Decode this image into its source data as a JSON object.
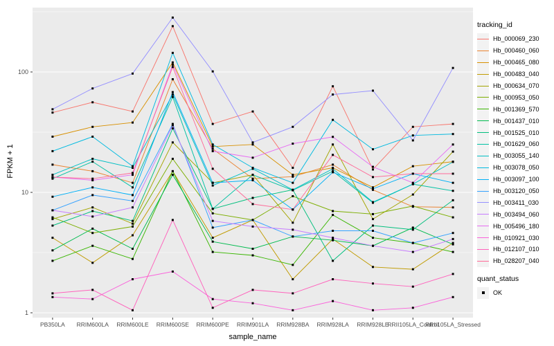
{
  "chart_data": {
    "type": "line",
    "title": "",
    "xlabel": "sample_name",
    "ylabel": "FPKM + 1",
    "x_categories": [
      "PB350LA",
      "RRIM600LA",
      "RRIM600LE",
      "RRIM600SE",
      "RRIM600PE",
      "RRIM901LA",
      "RRIM928BA",
      "RRIM928LA",
      "RRIM928LE",
      "RRII105LA_Control",
      "RRII105LA_Stressed"
    ],
    "y_scale": "log10",
    "y_ticks": [
      1,
      10,
      100
    ],
    "y_minor_gridlines": [
      3.162,
      31.62,
      316.2
    ],
    "ylim": [
      0.95,
      330
    ],
    "grid": "on",
    "legend_position": "right",
    "legend_titles": {
      "color": "tracking_id",
      "shape": "quant_status"
    },
    "shape_legend": {
      "label": "OK",
      "shape": "filled-square",
      "color": "#000000"
    },
    "point_color": "#000000",
    "panel_background": "#EBEBEB",
    "gridline_color": "#FFFFFF",
    "axis_text_color": "#4D4D4D",
    "series": [
      {
        "name": "Hb_000069_230",
        "color": "#F8766D",
        "values": [
          46,
          56,
          47,
          240,
          37,
          47,
          16,
          76,
          15.5,
          35,
          37
        ]
      },
      {
        "name": "Hb_000460_060",
        "color": "#EA8331",
        "values": [
          17,
          15,
          12,
          87,
          23,
          13,
          13.5,
          17,
          10.5,
          7.6,
          7.5
        ]
      },
      {
        "name": "Hb_000465_080",
        "color": "#D89000",
        "values": [
          29,
          35,
          38,
          120,
          24,
          25,
          14,
          16,
          11,
          16.5,
          18
        ]
      },
      {
        "name": "Hb_000483_040",
        "color": "#C09B00",
        "values": [
          4.2,
          2.6,
          4.4,
          15,
          4.2,
          5.9,
          1.9,
          4.1,
          2.4,
          2.3,
          3.8
        ]
      },
      {
        "name": "Hb_000634_070",
        "color": "#A3A500",
        "values": [
          6.0,
          7.5,
          5.5,
          26,
          12,
          14,
          5.6,
          25,
          6.0,
          9.6,
          21.8
        ]
      },
      {
        "name": "Hb_000953_050",
        "color": "#7CAE00",
        "values": [
          6.2,
          4.6,
          5.2,
          19,
          6.7,
          5.9,
          9.3,
          7.0,
          6.6,
          7.7,
          6.2
        ]
      },
      {
        "name": "Hb_001369_570",
        "color": "#39B600",
        "values": [
          2.7,
          3.6,
          2.8,
          15,
          3.2,
          3.0,
          2.5,
          6.5,
          4.2,
          3.8,
          3.2
        ]
      },
      {
        "name": "Hb_001437_010",
        "color": "#00BB4E",
        "values": [
          3.3,
          5.0,
          3.4,
          14,
          3.9,
          3.4,
          4.3,
          4.0,
          3.6,
          5.1,
          3.7
        ]
      },
      {
        "name": "Hb_001525_010",
        "color": "#00BF7D",
        "values": [
          5.3,
          7.0,
          5.8,
          34,
          7.3,
          9.0,
          10.5,
          2.7,
          5.3,
          4.9,
          8.6
        ]
      },
      {
        "name": "Hb_001629_060",
        "color": "#00C1A3",
        "values": [
          13,
          18,
          11,
          62,
          7.3,
          14,
          10.4,
          15,
          8.2,
          11.7,
          10.3
        ]
      },
      {
        "name": "Hb_003055_140",
        "color": "#00BFC4",
        "values": [
          14,
          19,
          16,
          65,
          11.4,
          15.7,
          10.5,
          15.7,
          8.3,
          11.7,
          17.9
        ]
      },
      {
        "name": "Hb_003078_050",
        "color": "#00BAE0",
        "values": [
          22,
          29,
          16.5,
          144,
          25,
          16,
          12,
          40,
          22.8,
          29.7,
          30.5
        ]
      },
      {
        "name": "Hb_003097_100",
        "color": "#00B0F6",
        "values": [
          9.2,
          11,
          9.5,
          68,
          12,
          12.6,
          7.2,
          14.7,
          10.7,
          14.3,
          12
        ]
      },
      {
        "name": "Hb_003120_050",
        "color": "#35A2FF",
        "values": [
          7.1,
          9.5,
          8.5,
          37,
          5.1,
          5.9,
          4.3,
          4.8,
          4.8,
          3.8,
          4.6
        ]
      },
      {
        "name": "Hb_003411_030",
        "color": "#9590FF",
        "values": [
          49,
          73,
          97,
          283,
          101,
          26,
          35,
          65,
          70,
          27,
          108
        ]
      },
      {
        "name": "Hb_003494_060",
        "color": "#C77CFF",
        "values": [
          7.1,
          6.3,
          7.5,
          36,
          5.8,
          5.2,
          4.9,
          4.2,
          3.6,
          3.2,
          4.1
        ]
      },
      {
        "name": "Hb_005496_180",
        "color": "#E76BF3",
        "values": [
          13.4,
          12.6,
          14,
          115,
          22,
          19.4,
          25.4,
          28.9,
          16.3,
          12,
          25
        ]
      },
      {
        "name": "Hb_010921_030",
        "color": "#FA62DB",
        "values": [
          1.35,
          1.3,
          1.9,
          2.2,
          1.3,
          1.2,
          1.05,
          1.25,
          1.05,
          1.1,
          1.35
        ]
      },
      {
        "name": "Hb_012107_010",
        "color": "#FF62BC",
        "values": [
          1.45,
          1.55,
          1.05,
          5.9,
          1.1,
          1.55,
          1.45,
          1.9,
          1.75,
          1.65,
          2.1
        ]
      },
      {
        "name": "Hb_028207_040",
        "color": "#FF6A98",
        "values": [
          13.4,
          13,
          14.5,
          110,
          15.7,
          8.0,
          7.2,
          20.5,
          13.4,
          14.3,
          14.3
        ]
      }
    ]
  }
}
